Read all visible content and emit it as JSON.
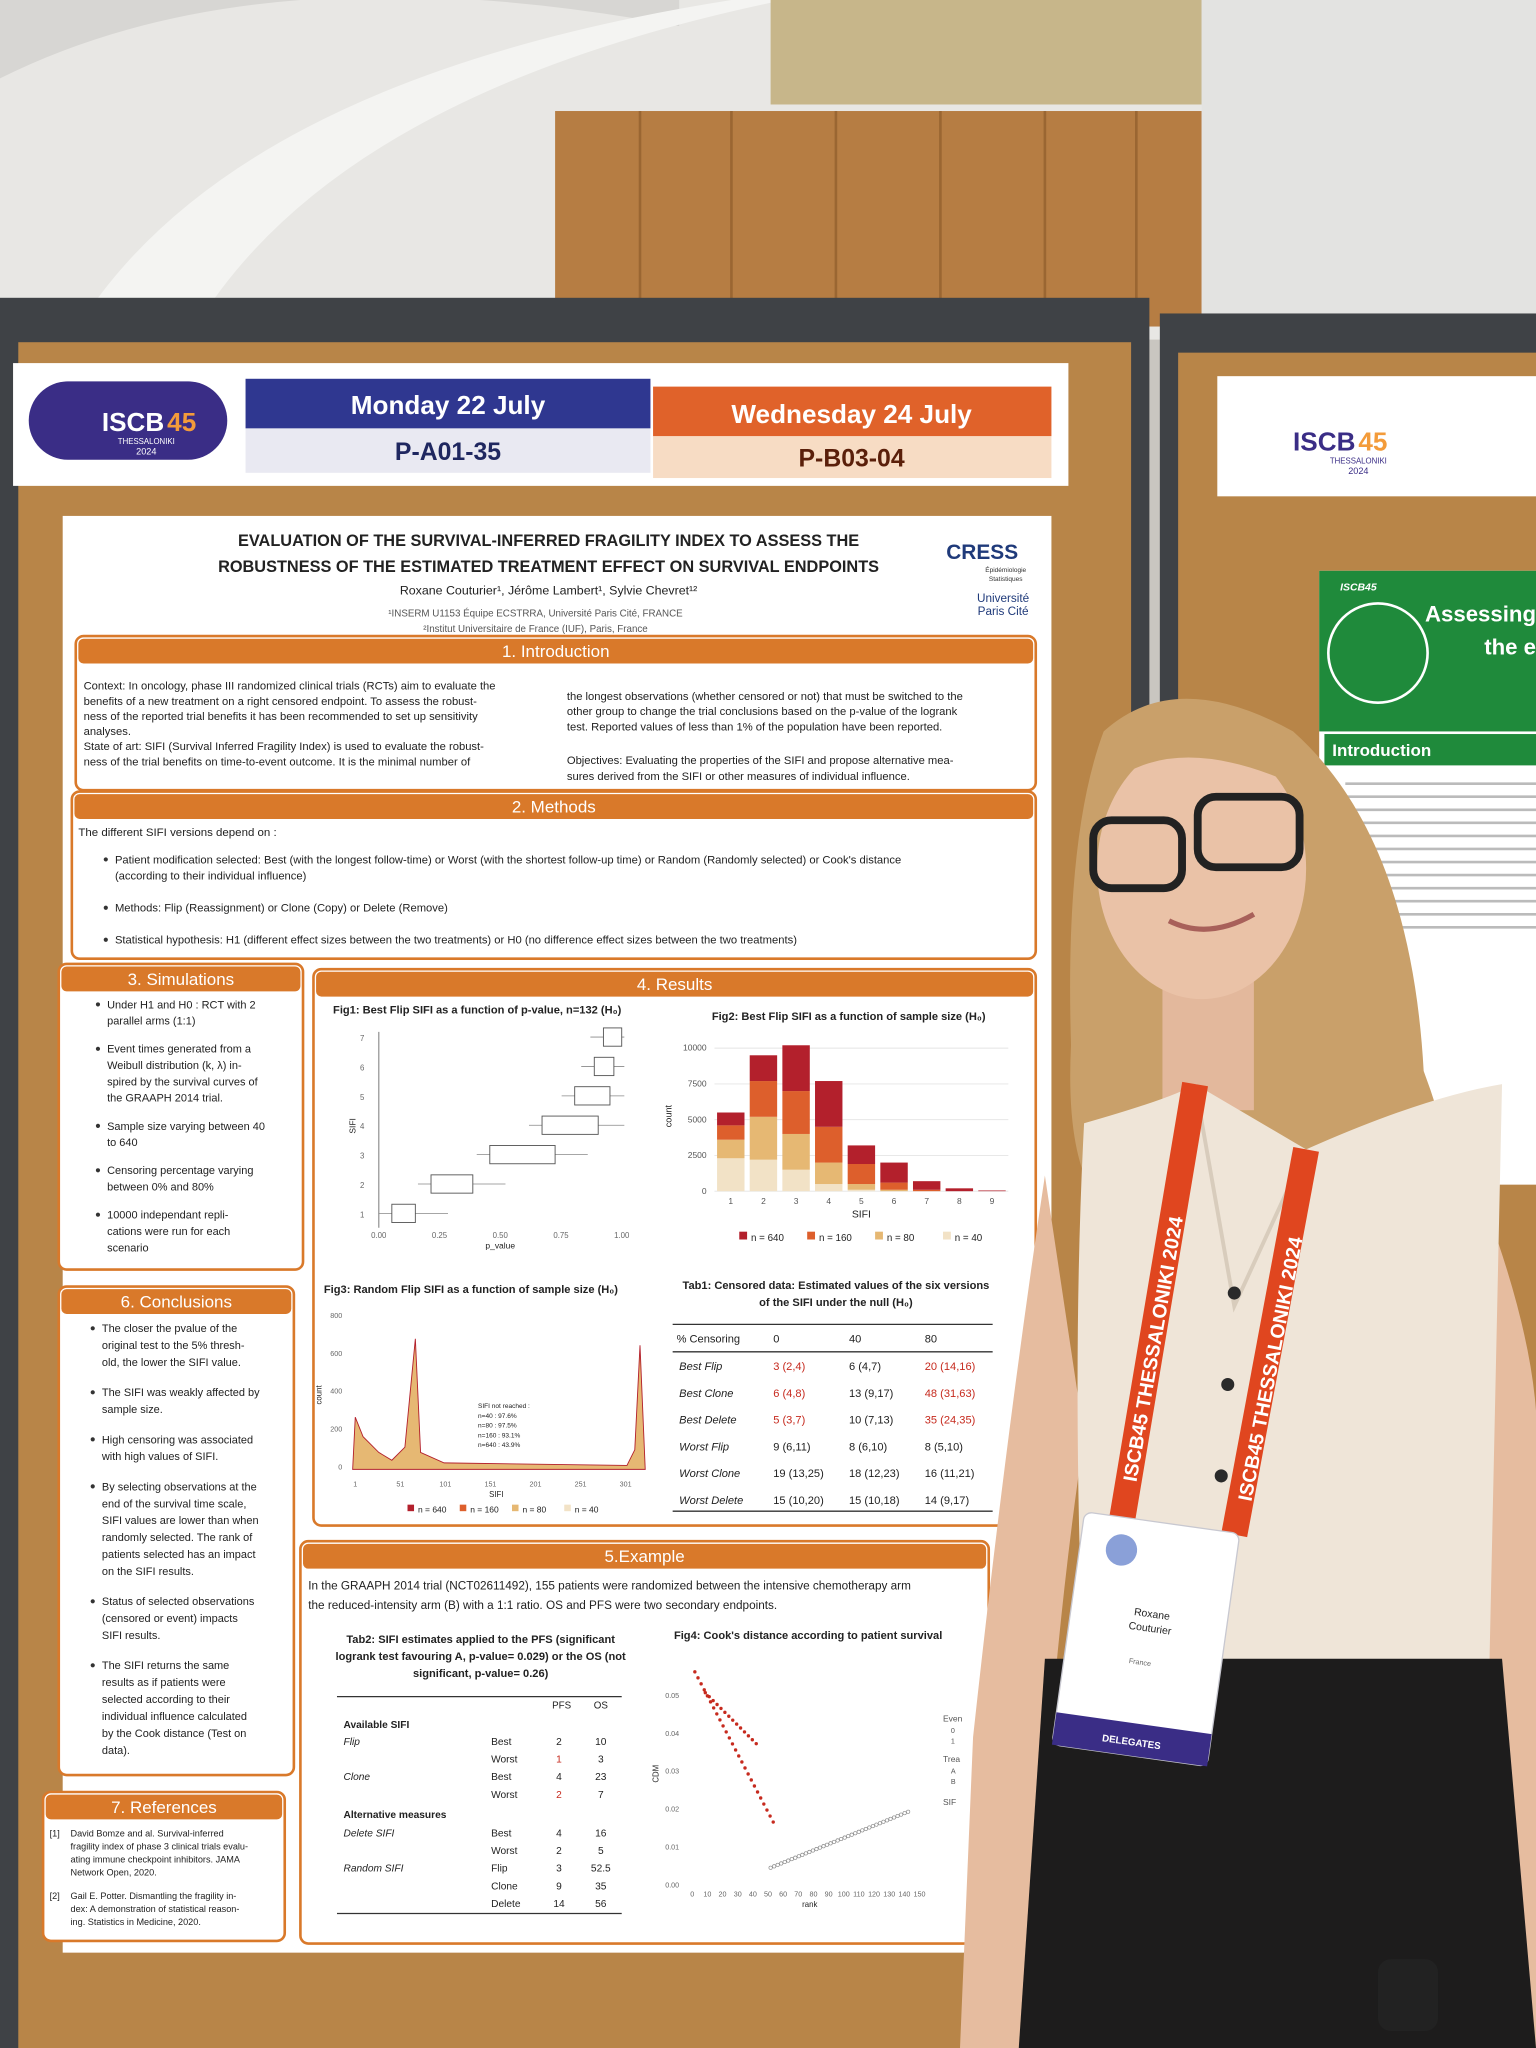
{
  "banner": {
    "logo_main": "ISCB",
    "logo_num": "45",
    "logo_city": "THESSALONIKI",
    "logo_year": "2024",
    "day1": "Monday 22 July",
    "code1": "P-A01-35",
    "day2": "Wednesday 24 July",
    "code2": "P-B03-04"
  },
  "poster": {
    "title": [
      "EVALUATION OF THE SURVIVAL-INFERRED FRAGILITY INDEX TO ASSESS THE",
      "ROBUSTNESS OF THE ESTIMATED TREATMENT EFFECT ON SURVIVAL ENDPOINTS"
    ],
    "authors": "Roxane Couturier¹, Jérôme Lambert¹, Sylvie Chevret¹²",
    "affiliations": [
      "¹INSERM U1153 Équipe ECSTRRA, Université Paris Cité, FRANCE",
      "²Institut Universitaire de France (IUF), Paris, France"
    ],
    "logo1": "CRESS",
    "logo1_sub": [
      "Épidémiologie",
      "Statistiques"
    ],
    "logo2": [
      "Université",
      "Paris Cité"
    ],
    "introduction": {
      "heading": "1. Introduction",
      "left": [
        "Context: In oncology, phase III randomized clinical trials (RCTs) aim to evaluate the",
        "benefits of a new treatment on a right censored endpoint. To assess the robust-",
        "ness of the reported trial benefits it has been recommended to set up sensitivity",
        "analyses.",
        "State of art: SIFI (Survival Inferred Fragility Index) is used to evaluate the robust-",
        "ness of the trial benefits on time-to-event outcome. It is the minimal number of"
      ],
      "right": [
        "the longest observations (whether censored or not) that must be switched to the",
        "other group to change the trial conclusions based on the p-value of the logrank",
        "test. Reported values of less than 1% of the population have been reported."
      ],
      "objectives": [
        "Objectives: Evaluating the properties of the SIFI and propose alternative mea-",
        "sures derived from the SIFI or other measures of individual influence."
      ]
    },
    "methods": {
      "heading": "2. Methods",
      "intro": "The different SIFI versions depend on :",
      "bullets": [
        [
          "Patient modification selected: Best (with the longest follow-time) or Worst (with the shortest follow-up time) or Random (Randomly selected) or Cook's distance",
          "(according to their individual influence)"
        ],
        [
          "Methods: Flip (Reassignment) or Clone (Copy) or Delete (Remove)"
        ],
        [
          "Statistical hypothesis: H1 (different effect sizes between the two treatments) or H0 (no difference effect sizes between the two treatments)"
        ]
      ]
    },
    "simulations": {
      "heading": "3. Simulations",
      "bullets": [
        [
          "Under H1 and H0 : RCT with 2",
          "parallel arms (1:1)"
        ],
        [
          "Event times generated from a",
          "Weibull distribution (k, λ) in-",
          "spired by the survival curves of",
          "the GRAAPH 2014 trial."
        ],
        [
          "Sample size varying between 40",
          "to 640"
        ],
        [
          "Censoring percentage varying",
          "between 0% and 80%"
        ],
        [
          "10000 independant repli-",
          "cations were run for each",
          "scenario"
        ]
      ]
    },
    "results": {
      "heading": "4. Results",
      "fig1": {
        "title": "Fig1: Best Flip SIFI as a function of p-value, n=132 (H₀)",
        "ylabel": "SIFI",
        "xlabel": "p_value",
        "xticks": [
          "0.00",
          "0.25",
          "0.50",
          "0.75",
          "1.00"
        ],
        "yticks": [
          "1",
          "2",
          "3",
          "4",
          "5",
          "6",
          "7"
        ]
      },
      "fig2": {
        "type": "bar",
        "title": "Fig2: Best Flip SIFI as a function of sample size (H₀)",
        "xlabel": "SIFI",
        "ylabel": "count",
        "categories": [
          "1",
          "2",
          "3",
          "4",
          "5",
          "6",
          "7",
          "8",
          "9"
        ],
        "series": [
          {
            "name": "n = 40",
            "color": "#f2e2c6",
            "values": [
              2300,
              2200,
              1500,
              500,
              100,
              0,
              0,
              0,
              0
            ]
          },
          {
            "name": "n = 80",
            "color": "#e6b873",
            "values": [
              1300,
              3000,
              2500,
              1500,
              400,
              100,
              0,
              0,
              0
            ]
          },
          {
            "name": "n = 160",
            "color": "#dd5f2c",
            "values": [
              1000,
              2500,
              3000,
              2500,
              1400,
              500,
              100,
              0,
              0
            ]
          },
          {
            "name": "n = 640",
            "color": "#b3202c",
            "values": [
              900,
              1800,
              3200,
              3200,
              1300,
              1400,
              600,
              200,
              50
            ]
          }
        ],
        "legend_order": [
          3,
          2,
          1,
          0
        ],
        "ylim": [
          0,
          10500
        ],
        "yticks": [
          0,
          2500,
          5000,
          7500,
          10000
        ],
        "grid": true
      },
      "fig3": {
        "title": "Fig3: Random Flip SIFI as a function of sample size (H₀)",
        "ylabel": "count",
        "xlabel": "SIFI",
        "yticks": [
          "800",
          "600",
          "400",
          "200",
          "0"
        ],
        "xticks": [
          "1",
          "51",
          "101",
          "151",
          "201",
          "251",
          "301"
        ],
        "note": [
          "SIFI not reached :",
          "n=40 : 97.6%",
          "n=80 : 97.5%",
          "n=160 : 93.1%",
          "n=640 : 43.9%"
        ],
        "legend": [
          "n = 640",
          "n = 160",
          "n = 80",
          "n = 40"
        ]
      },
      "tab1": {
        "title": [
          "Tab1: Censored data: Estimated values of the six versions",
          "of the SIFI under the null (H₀)"
        ],
        "header": [
          "% Censoring",
          "0",
          "40",
          "80"
        ],
        "rows": [
          [
            "Best Flip",
            "3 (2,4)",
            "6 (4,7)",
            "20 (14,16)"
          ],
          [
            "Best Clone",
            "6 (4,8)",
            "13 (9,17)",
            "48 (31,63)"
          ],
          [
            "Best Delete",
            "5 (3,7)",
            "10 (7,13)",
            "35 (24,35)"
          ],
          [
            "Worst Flip",
            "9 (6,11)",
            "8 (6,10)",
            "8 (5,10)"
          ],
          [
            "Worst Clone",
            "19 (13,25)",
            "18 (12,23)",
            "16 (11,21)"
          ],
          [
            "Worst Delete",
            "15 (10,20)",
            "15 (10,18)",
            "14 (9,17)"
          ]
        ],
        "highlight_rows": 3
      }
    },
    "example": {
      "heading": "5.Example",
      "text": [
        "In the GRAAPH 2014 trial (NCT02611492), 155 patients were randomized between the intensive chemotherapy arm",
        "the reduced-intensity arm (B) with a 1:1 ratio. OS and PFS were two secondary endpoints."
      ],
      "tab2": {
        "title": [
          "Tab2: SIFI estimates applied to the PFS (significant",
          "logrank test favouring A, p-value= 0.029) or the OS (not",
          "significant, p-value= 0.26)"
        ],
        "header": [
          "PFS",
          "OS"
        ],
        "section1": "Available SIFI",
        "section2": "Alternative measures",
        "rows1": [
          [
            "Flip",
            "Best",
            "2",
            "10"
          ],
          [
            null,
            "Worst",
            "1",
            "3"
          ],
          [
            "Clone",
            "Best",
            "4",
            "23"
          ],
          [
            null,
            "Worst",
            "2",
            "7"
          ]
        ],
        "rows2": [
          [
            "Delete SIFI",
            "Best",
            "4",
            "16"
          ],
          [
            null,
            "Worst",
            "2",
            "5"
          ],
          [
            "Random SIFI",
            "Flip",
            "3",
            "52.5"
          ],
          [
            null,
            "Clone",
            "9",
            "35"
          ],
          [
            null,
            "Delete",
            "14",
            "56"
          ]
        ]
      },
      "fig4": {
        "title": "Fig4: Cook's distance according to patient survival",
        "ylabel": "CDM",
        "xlabel": "rank",
        "yticks": [
          "0.05",
          "0.04",
          "0.03",
          "0.02",
          "0.01",
          "0.00"
        ],
        "xticks": [
          "0",
          "10",
          "20",
          "30",
          "40",
          "50",
          "60",
          "70",
          "80",
          "90",
          "100",
          "110",
          "120",
          "130",
          "140",
          "150"
        ],
        "legend": [
          "Even",
          "0",
          "1",
          "Trea",
          "A",
          "B",
          "SIF"
        ]
      }
    },
    "conclusions": {
      "heading": "6. Conclusions",
      "bullets": [
        [
          "The closer the pvalue of the",
          "original test to the 5% thresh-",
          "old, the lower the SIFI value."
        ],
        [
          "The SIFI was weakly affected by",
          "sample size."
        ],
        [
          "High censoring was associated",
          "with high values of SIFI."
        ],
        [
          "By selecting observations at the",
          "end of the survival time scale,",
          "SIFI values are lower than when",
          "randomly selected. The rank of",
          "patients selected has an impact",
          "on the SIFI results."
        ],
        [
          "Status of selected observations",
          "(censored or event) impacts",
          "SIFI results."
        ],
        [
          "The SIFI returns the same",
          "results as if patients were",
          "selected according to their",
          "individual influence calculated",
          "by the Cook distance (Test on",
          "data)."
        ]
      ]
    },
    "references": {
      "heading": "7. References",
      "items": [
        {
          "num": "[1]",
          "lines": [
            "David Bomze and al. Survival-inferred",
            "fragility index of phase 3 clinical trials evalu-",
            "ating immune checkpoint inhibitors. JAMA",
            "Network Open, 2020."
          ]
        },
        {
          "num": "[2]",
          "lines": [
            "Gail E. Potter. Dismantling the fragility in-",
            "dex: A demonstration of statistical reason-",
            "ing. Statistics in Medicine, 2020."
          ]
        }
      ]
    }
  },
  "right_poster": {
    "logo_main": "ISCB",
    "logo_num": "45",
    "logo_city": "THESSALONIKI",
    "logo_year": "2024",
    "tag": "ISCB45",
    "title": [
      "Assessing",
      "the e"
    ],
    "section": "Introduction"
  },
  "badge": {
    "lanyard": "ISCB45 THESSALONIKI 2024",
    "first_name": "Roxane",
    "last_name": "Couturier",
    "country": "France",
    "role": "DELEGATES"
  }
}
